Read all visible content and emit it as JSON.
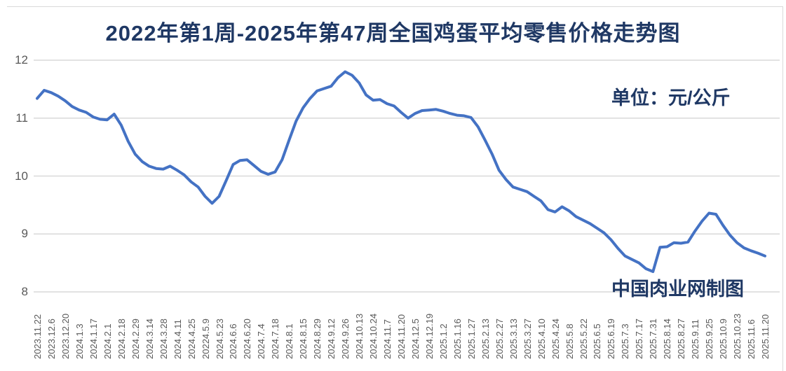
{
  "title": "2022年第1周-2025年第47周全国鸡蛋平均零售价格走势图",
  "unit_label": "单位：元/公斤",
  "watermark": "中国肉业网制图",
  "colors": {
    "title_text": "#1f3864",
    "line": "#4472c4",
    "gridline": "#d9d9d9",
    "axis_text": "#595959",
    "background": "#ffffff"
  },
  "chart_data": {
    "type": "line",
    "title": "2022年第1周-2025年第47周全国鸡蛋平均零售价格走势图",
    "ylabel": "元/公斤",
    "xlabel": "",
    "ylim": [
      8,
      12
    ],
    "y_ticks": [
      12,
      11,
      10,
      9,
      8
    ],
    "grid": "horizontal",
    "legend": "none",
    "categories": [
      "2023.11.22",
      "2023.12.6",
      "2023.12.20",
      "2024.1.3",
      "2024.1.17",
      "2024.2.1",
      "2024.2.18",
      "2024.2.29",
      "2024.3.14",
      "2024.3.28",
      "2024.4.11",
      "2024.4.25",
      "20224.5.9",
      "2024.5.23",
      "2024.6.6",
      "2024.6.20",
      "2024.7.4",
      "2024.7.18",
      "2024.8.1",
      "2024.8.15",
      "2024.8.29",
      "2024.9.12",
      "2024.9.26",
      "2024.10.13",
      "2024.10.24",
      "2024.11.7",
      "2024.11.20",
      "2024.12.5",
      "2024.12.19",
      "2025.1.2",
      "2025.1.16",
      "2025.1.27",
      "2025.2.13",
      "2025.2.27",
      "2025.3.13",
      "2025.3.27",
      "2025.4.10",
      "2025.4.24",
      "2025.5.8",
      "2025.5.22",
      "2025.6.5",
      "2025.6.19",
      "2025.7.3",
      "2025.7.17",
      "2025.7.31",
      "2025.8.14",
      "2025.8.27",
      "2025.9.11",
      "2025.9.25",
      "2025.10.9",
      "2025.10.23",
      "2025.11.6",
      "2025.11.20"
    ],
    "series": [
      {
        "name": "全国鸡蛋平均零售价格",
        "color": "#4472c4",
        "points_per_category": 2,
        "values": [
          11.34,
          11.48,
          11.44,
          11.38,
          11.3,
          11.2,
          11.14,
          11.1,
          11.02,
          10.98,
          10.97,
          11.07,
          10.88,
          10.6,
          10.38,
          10.25,
          10.17,
          10.13,
          10.12,
          10.17,
          10.1,
          10.02,
          9.9,
          9.81,
          9.65,
          9.53,
          9.65,
          9.92,
          10.2,
          10.27,
          10.28,
          10.18,
          10.08,
          10.03,
          10.07,
          10.28,
          10.62,
          10.95,
          11.18,
          11.34,
          11.47,
          11.51,
          11.55,
          11.7,
          11.8,
          11.74,
          11.61,
          11.4,
          11.31,
          11.32,
          11.25,
          11.21,
          11.1,
          11.0,
          11.08,
          11.13,
          11.14,
          11.15,
          11.12,
          11.08,
          11.05,
          11.04,
          11.01,
          10.85,
          10.62,
          10.38,
          10.1,
          9.94,
          9.81,
          9.77,
          9.73,
          9.65,
          9.57,
          9.42,
          9.38,
          9.47,
          9.4,
          9.3,
          9.24,
          9.18,
          9.1,
          9.02,
          8.9,
          8.75,
          8.62,
          8.56,
          8.5,
          8.4,
          8.35,
          8.77,
          8.78,
          8.85,
          8.84,
          8.86,
          9.05,
          9.22,
          9.36,
          9.34,
          9.15,
          8.98,
          8.85,
          8.76,
          8.71,
          8.67,
          8.62
        ]
      }
    ]
  }
}
